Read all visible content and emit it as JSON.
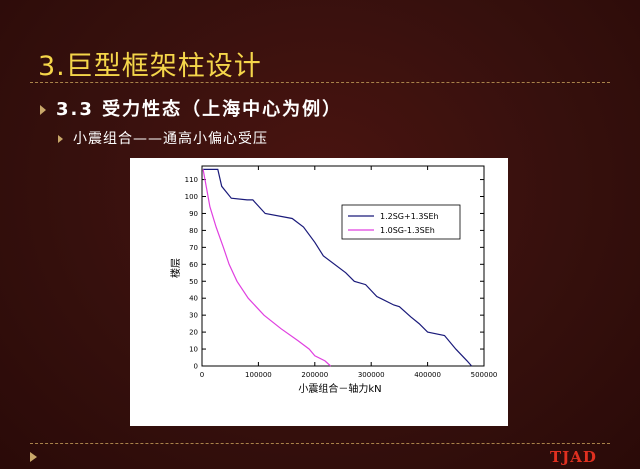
{
  "slide": {
    "title": "3.巨型框架柱设计",
    "bullet1": "3.3 受力性态（上海中心为例）",
    "bullet2": "小震组合——通高小偏心受压",
    "logo": "TJAD"
  },
  "colors": {
    "background": "#3a0d0b",
    "title": "#f5d64a",
    "series1": "#1a1a7a",
    "series2": "#e040e0"
  },
  "chart_data": {
    "type": "line",
    "xlabel": "小震组合－轴力kN",
    "ylabel": "楼层",
    "xlim": [
      0,
      500000
    ],
    "ylim": [
      0,
      118
    ],
    "xticks": [
      "0",
      "100000",
      "200000",
      "300000",
      "400000",
      "500000"
    ],
    "yticks": [
      "0",
      "10",
      "20",
      "30",
      "40",
      "50",
      "60",
      "70",
      "80",
      "90",
      "100",
      "110"
    ],
    "legend_position": "top-right",
    "series": [
      {
        "name": "1.2SG+1.3SEh",
        "color": "#1a1a7a",
        "points": [
          [
            2000,
            116
          ],
          [
            8000,
            116
          ],
          [
            28000,
            116
          ],
          [
            35000,
            106
          ],
          [
            52000,
            99
          ],
          [
            80000,
            98
          ],
          [
            90000,
            98
          ],
          [
            112000,
            90
          ],
          [
            160000,
            87
          ],
          [
            180000,
            82
          ],
          [
            200000,
            73
          ],
          [
            215000,
            65
          ],
          [
            255000,
            55
          ],
          [
            270000,
            50
          ],
          [
            290000,
            48
          ],
          [
            310000,
            41
          ],
          [
            340000,
            36
          ],
          [
            350000,
            35
          ],
          [
            370000,
            29
          ],
          [
            385000,
            25
          ],
          [
            400000,
            20
          ],
          [
            430000,
            18
          ],
          [
            450000,
            10
          ],
          [
            470000,
            3
          ],
          [
            478000,
            0
          ]
        ]
      },
      {
        "name": "1.0SG-1.3SEh",
        "color": "#e040e0",
        "points": [
          [
            2000,
            116
          ],
          [
            8000,
            105
          ],
          [
            14000,
            94
          ],
          [
            25000,
            82
          ],
          [
            38000,
            70
          ],
          [
            48000,
            60
          ],
          [
            62000,
            50
          ],
          [
            82000,
            40
          ],
          [
            110000,
            30
          ],
          [
            140000,
            22
          ],
          [
            170000,
            15
          ],
          [
            190000,
            10
          ],
          [
            200000,
            6
          ],
          [
            218000,
            3
          ],
          [
            228000,
            0
          ]
        ]
      }
    ]
  }
}
